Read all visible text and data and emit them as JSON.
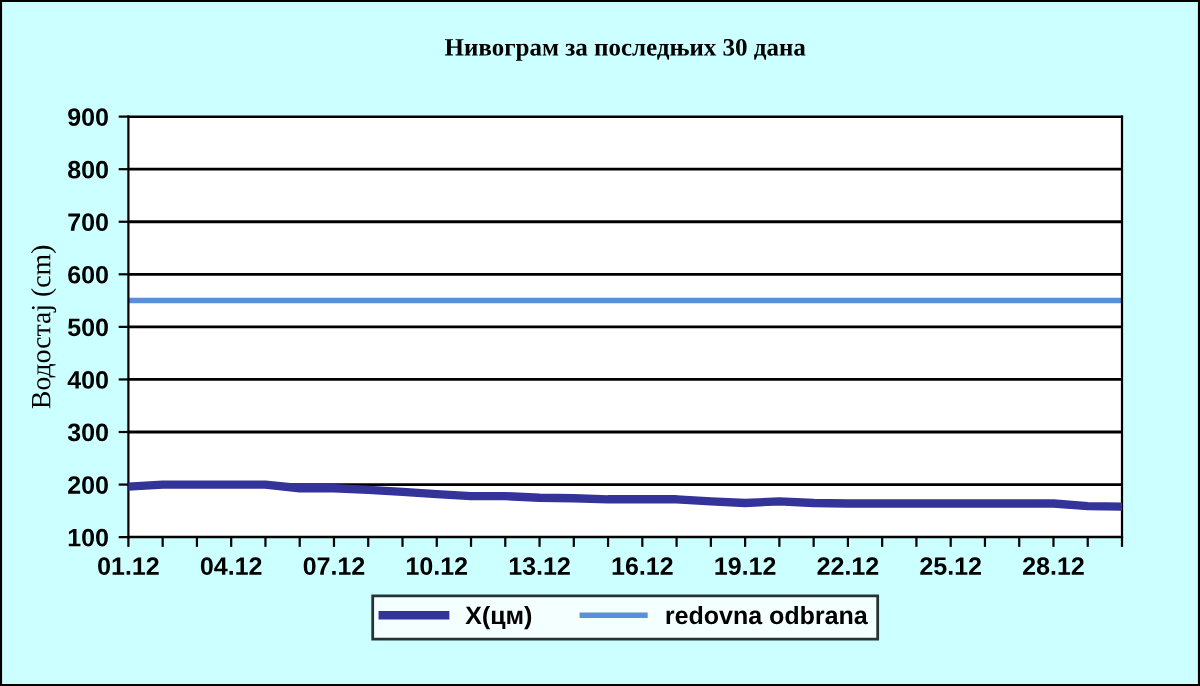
{
  "chart_data": {
    "type": "line",
    "title": "Нивограм за последњих 30 дана",
    "ylabel": "Водостај (cm)",
    "categories": [
      "01.12",
      null,
      null,
      "04.12",
      null,
      null,
      "07.12",
      null,
      null,
      "10.12",
      null,
      null,
      "13.12",
      null,
      null,
      "16.12",
      null,
      null,
      "19.12",
      null,
      null,
      "22.12",
      null,
      null,
      "25.12",
      null,
      null,
      "28.12",
      null,
      null
    ],
    "series": [
      {
        "name": "X(цм)",
        "color": "#333399",
        "values": [
          196,
          200,
          200,
          200,
          200,
          193,
          193,
          190,
          186,
          182,
          178,
          178,
          175,
          174,
          172,
          172,
          172,
          168,
          165,
          168,
          165,
          164,
          164,
          164,
          164,
          164,
          164,
          164,
          159,
          158
        ]
      }
    ],
    "ref_lines": [
      {
        "axis": "y",
        "value": 550,
        "label": "redovna odbrana",
        "color": "#5b8fd6"
      }
    ],
    "ylim": [
      100,
      900
    ],
    "yticks": [
      100,
      200,
      300,
      400,
      500,
      600,
      700,
      800,
      900
    ],
    "grid": "y",
    "legend": "bottom"
  }
}
